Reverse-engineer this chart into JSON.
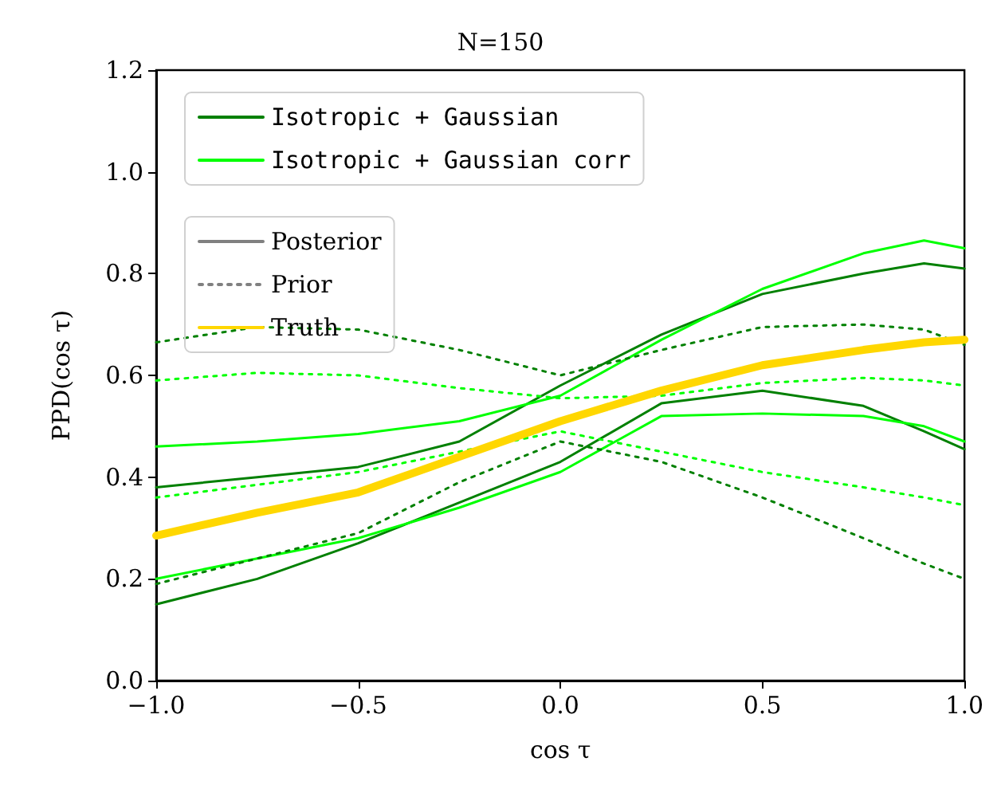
{
  "chart_data": {
    "type": "line",
    "title": "N=150",
    "xlabel": "cos τ",
    "ylabel": "PPD(cos τ)",
    "x": [
      -1,
      -0.75,
      -0.5,
      -0.25,
      0,
      0.25,
      0.5,
      0.75,
      0.9,
      1
    ],
    "xlim": [
      -1,
      1
    ],
    "xticks": [
      {
        "value": -1,
        "label": "−1.0"
      },
      {
        "value": -0.5,
        "label": "−0.5"
      },
      {
        "value": 0,
        "label": "0.0"
      },
      {
        "value": 0.5,
        "label": "0.5"
      },
      {
        "value": 1,
        "label": "1.0"
      }
    ],
    "ylim": [
      0,
      1.2
    ],
    "yticks": [
      {
        "value": 0,
        "label": "0.0"
      },
      {
        "value": 0.2,
        "label": "0.2"
      },
      {
        "value": 0.4,
        "label": "0.4"
      },
      {
        "value": 0.6,
        "label": "0.6"
      },
      {
        "value": 0.8,
        "label": "0.8"
      },
      {
        "value": 1,
        "label": "1.0"
      },
      {
        "value": 1.2,
        "label": "1.2"
      }
    ],
    "grid": false,
    "legend": "top left",
    "marker": "none",
    "series": [
      {
        "name": "Isotropic + Gaussian",
        "color": "#008000",
        "line_style": "solid",
        "values": [
          0.38,
          0.4,
          0.42,
          0.47,
          0.58,
          0.68,
          0.76,
          0.8,
          0.82,
          0.81
        ]
      },
      {
        "name": "Isotropic + Gaussian corr",
        "color": "#00ff00",
        "line_style": "solid",
        "values": [
          0.46,
          0.47,
          0.485,
          0.51,
          0.56,
          0.67,
          0.77,
          0.84,
          0.865,
          0.85
        ]
      },
      {
        "name": "Posterior",
        "color": "#808080",
        "line_style": "solid",
        "values": [
          null,
          null,
          null,
          null,
          null,
          null,
          null,
          null,
          null,
          null
        ]
      },
      {
        "name": "Prior",
        "color": "#808080",
        "line_style": "dotted",
        "values": [
          null,
          null,
          null,
          null,
          null,
          null,
          null,
          null,
          null,
          null
        ]
      },
      {
        "name": "Truth",
        "color": "#ffd700",
        "line_style": "solid",
        "values": [
          0.285,
          0.33,
          0.37,
          0.44,
          0.51,
          0.57,
          0.62,
          0.65,
          0.665,
          0.67
        ]
      },
      {
        "color": "#008000",
        "line_style": "solid",
        "values": [
          0.15,
          0.2,
          0.27,
          0.35,
          0.43,
          0.545,
          0.57,
          0.54,
          0.49,
          0.455
        ]
      },
      {
        "color": "#00ff00",
        "line_style": "solid",
        "values": [
          0.2,
          0.24,
          0.28,
          0.34,
          0.41,
          0.52,
          0.525,
          0.52,
          0.5,
          0.47
        ]
      },
      {
        "color": "#008000",
        "line_style": "dotted",
        "values": [
          0.665,
          0.695,
          0.69,
          0.65,
          0.6,
          0.65,
          0.695,
          0.7,
          0.69,
          0.66
        ]
      },
      {
        "color": "#00ff00",
        "line_style": "dotted",
        "values": [
          0.59,
          0.605,
          0.6,
          0.575,
          0.555,
          0.56,
          0.585,
          0.595,
          0.59,
          0.58
        ]
      },
      {
        "color": "#008000",
        "line_style": "dotted",
        "values": [
          0.19,
          0.24,
          0.29,
          0.39,
          0.47,
          0.43,
          0.36,
          0.28,
          0.23,
          0.2
        ]
      },
      {
        "color": "#00ff00",
        "line_style": "dotted",
        "values": [
          0.36,
          0.385,
          0.41,
          0.45,
          0.49,
          0.45,
          0.41,
          0.38,
          0.36,
          0.345
        ]
      }
    ]
  }
}
